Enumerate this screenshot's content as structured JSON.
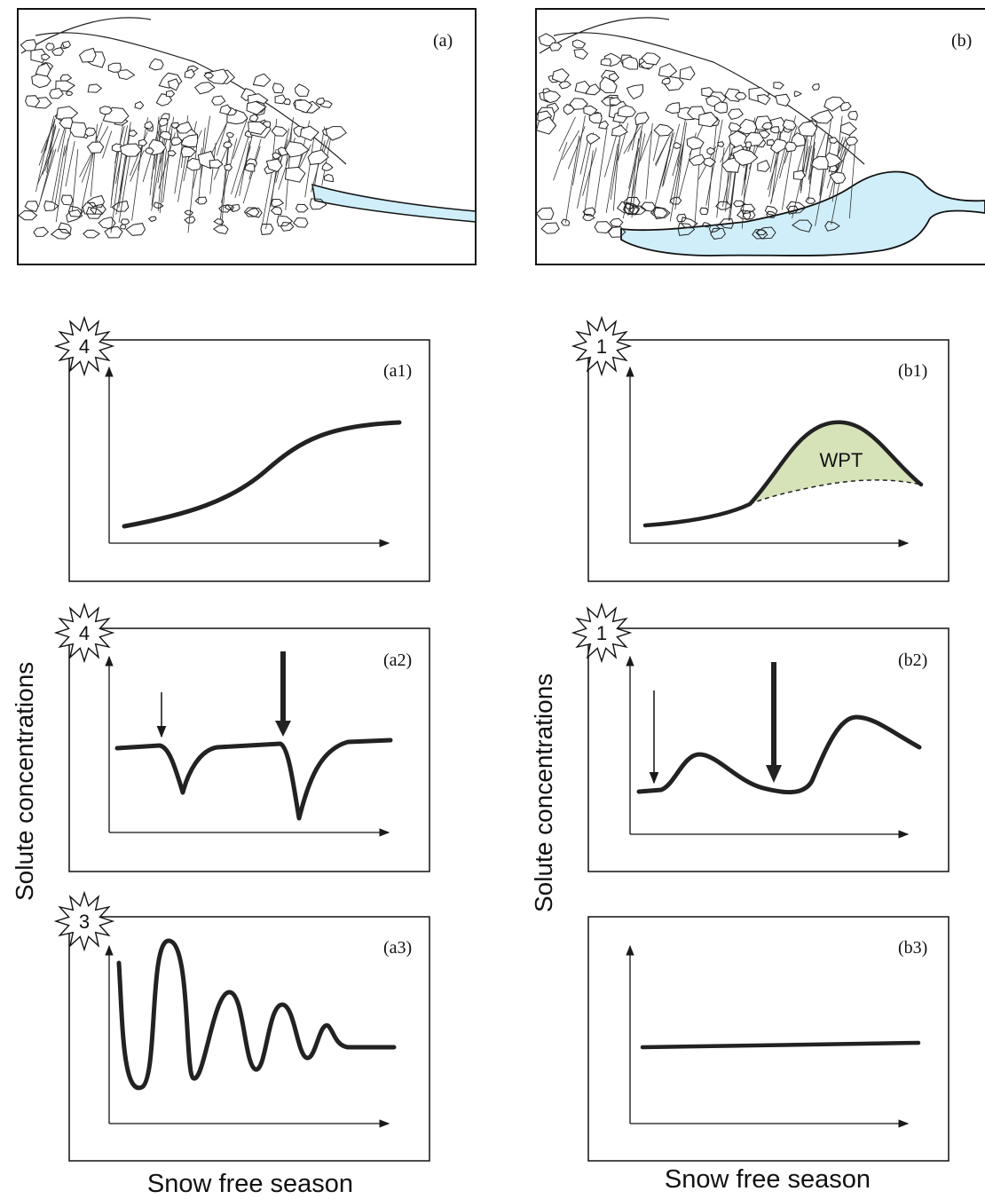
{
  "panels": {
    "a": {
      "label": "(a)"
    },
    "b": {
      "label": "(b)"
    }
  },
  "graphs": {
    "a1": {
      "label": "(a1)",
      "badge": "4"
    },
    "a2": {
      "label": "(a2)",
      "badge": "4"
    },
    "a3": {
      "label": "(a3)",
      "badge": "3"
    },
    "b1": {
      "label": "(b1)",
      "badge": "1",
      "area_label": "WPT"
    },
    "b2": {
      "label": "(b2)",
      "badge": "1"
    },
    "b3": {
      "label": "(b3)"
    }
  },
  "axes": {
    "left_ylabel": "Solute concentrations",
    "right_ylabel": "Solute concentrations",
    "left_xlabel": "Snow free season",
    "right_xlabel": "Snow free season"
  },
  "colors": {
    "water": "#cfeefa",
    "wpt_fill": "#d6e2b8",
    "ink": "#1a1a1a"
  }
}
